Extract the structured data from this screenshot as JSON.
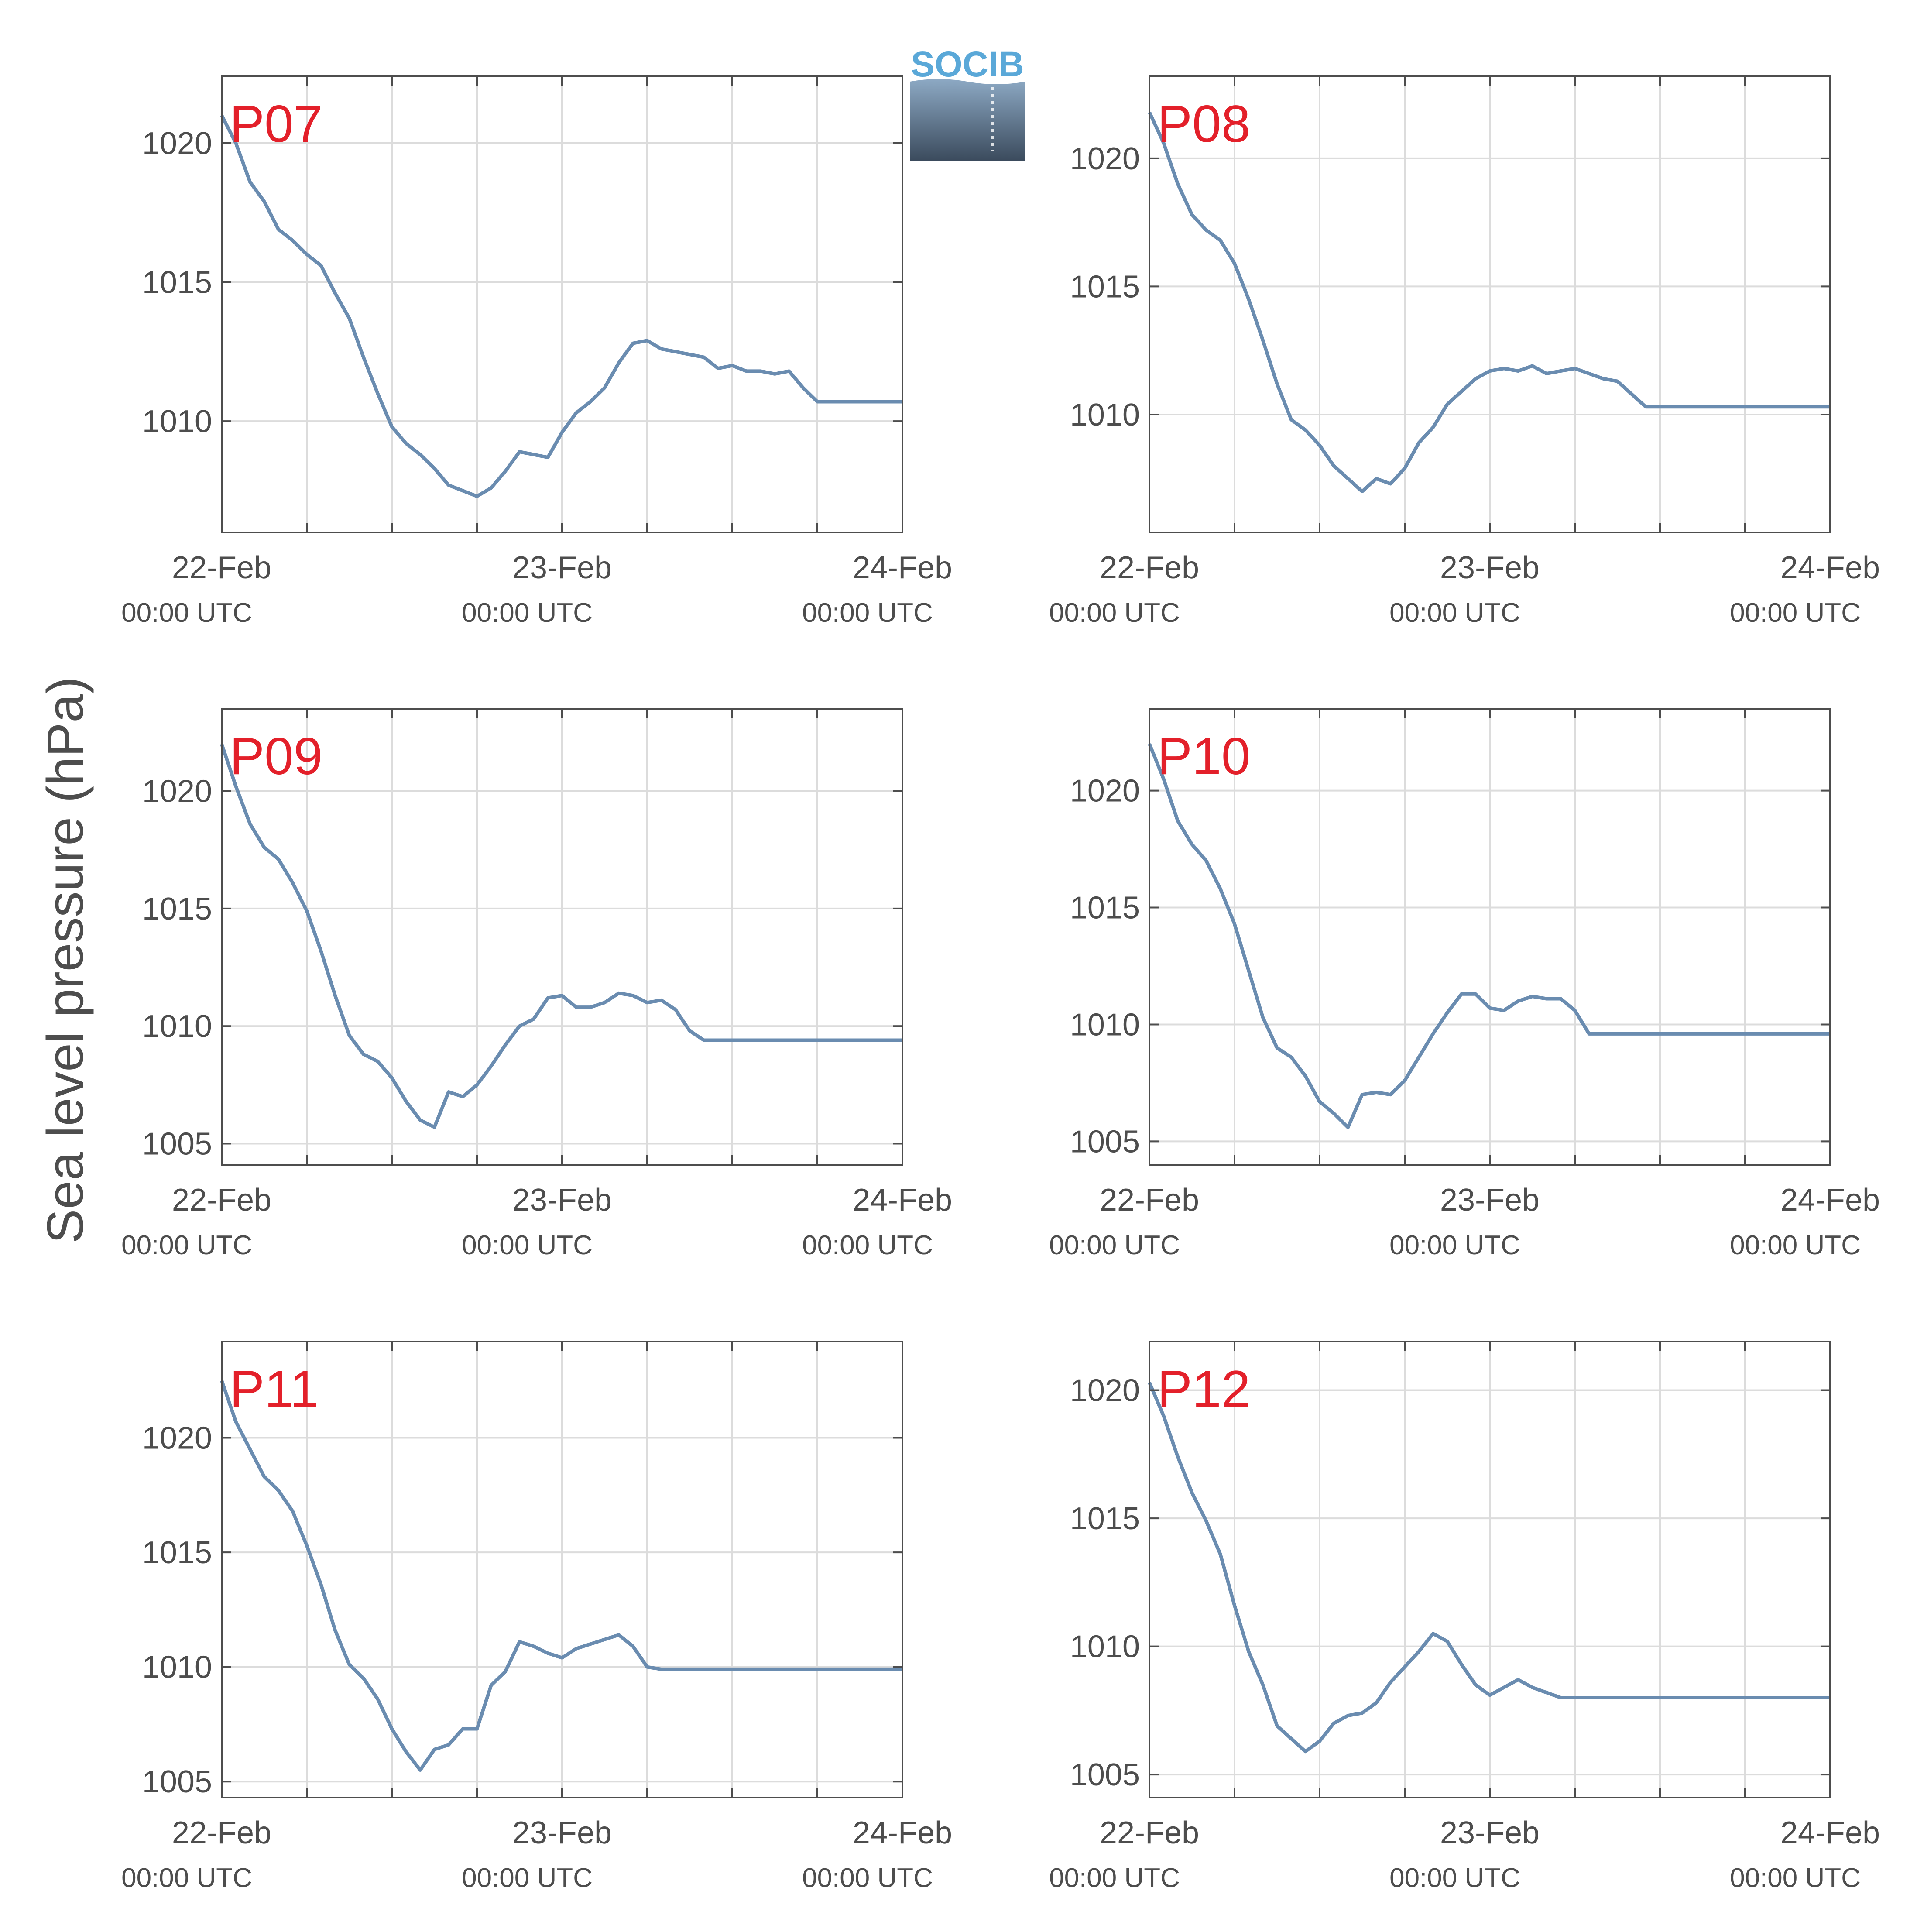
{
  "figure": {
    "ylabel": "Sea level pressure (hPa)",
    "logo_text": "SOCIB",
    "colors": {
      "line": "#6a8cb0",
      "panel_label": "#e3202a",
      "axis": "#4d4d4d",
      "grid": "#dcdcdc"
    }
  },
  "chart_data": [
    {
      "type": "line",
      "label": "P07",
      "x_ticks": [
        {
          "date": "22-Feb",
          "time": "00:00 UTC"
        },
        {
          "date": "23-Feb",
          "time": "00:00 UTC"
        },
        {
          "date": "24-Feb",
          "time": "00:00 UTC"
        }
      ],
      "xlim_hours": [
        0,
        48
      ],
      "grid": true,
      "ylim": [
        1006,
        1022.4
      ],
      "yticks": [
        1010,
        1015,
        1020
      ],
      "series": [
        {
          "x": [
            0,
            1,
            2,
            3,
            4,
            5,
            6,
            7,
            8,
            9,
            10,
            11,
            12,
            13,
            14,
            15,
            16,
            17,
            18,
            19,
            20,
            21,
            22,
            23,
            24,
            25,
            26,
            27,
            28,
            29,
            30,
            31,
            32,
            33,
            34,
            35,
            36,
            37,
            38,
            39,
            40,
            41,
            42,
            43,
            44,
            45,
            46,
            47,
            48
          ],
          "y": [
            1021.0,
            1020.0,
            1018.6,
            1017.9,
            1016.9,
            1016.5,
            1016.0,
            1015.6,
            1014.6,
            1013.7,
            1012.3,
            1011.0,
            1009.8,
            1009.2,
            1008.8,
            1008.3,
            1007.7,
            1007.5,
            1007.3,
            1007.6,
            1008.2,
            1008.9,
            1008.8,
            1008.7,
            1009.6,
            1010.3,
            1010.7,
            1011.2,
            1012.1,
            1012.8,
            1012.9,
            1012.6,
            1012.5,
            1012.4,
            1012.3,
            1011.9,
            1012.0,
            1011.8,
            1011.8,
            1011.7,
            1011.8,
            1011.2,
            1010.7,
            1010.7,
            1010.7,
            1010.7,
            1010.7,
            1010.7,
            1010.7
          ]
        }
      ]
    },
    {
      "type": "line",
      "label": "P08",
      "x_ticks": [
        {
          "date": "22-Feb",
          "time": "00:00 UTC"
        },
        {
          "date": "23-Feb",
          "time": "00:00 UTC"
        },
        {
          "date": "24-Feb",
          "time": "00:00 UTC"
        }
      ],
      "xlim_hours": [
        0,
        48
      ],
      "grid": true,
      "ylim": [
        1005.4,
        1023.2
      ],
      "yticks": [
        1010,
        1015,
        1020
      ],
      "series": [
        {
          "x": [
            0,
            1,
            2,
            3,
            4,
            5,
            6,
            7,
            8,
            9,
            10,
            11,
            12,
            13,
            14,
            15,
            16,
            17,
            18,
            19,
            20,
            21,
            22,
            23,
            24,
            25,
            26,
            27,
            28,
            29,
            30,
            31,
            32,
            33,
            34,
            35,
            36,
            37,
            38,
            39,
            40,
            41,
            42,
            43,
            44,
            45,
            46,
            47,
            48
          ],
          "y": [
            1021.8,
            1020.6,
            1019.0,
            1017.8,
            1017.2,
            1016.8,
            1015.9,
            1014.5,
            1012.9,
            1011.2,
            1009.8,
            1009.4,
            1008.8,
            1008.0,
            1007.5,
            1007.0,
            1007.5,
            1007.3,
            1007.9,
            1008.9,
            1009.5,
            1010.4,
            1010.9,
            1011.4,
            1011.7,
            1011.8,
            1011.7,
            1011.9,
            1011.6,
            1011.7,
            1011.8,
            1011.6,
            1011.4,
            1011.3,
            1010.8,
            1010.3,
            1010.3,
            1010.3,
            1010.3,
            1010.3,
            1010.3,
            1010.3,
            1010.3,
            1010.3,
            1010.3,
            1010.3,
            1010.3,
            1010.3,
            1010.3
          ]
        }
      ]
    },
    {
      "type": "line",
      "label": "P09",
      "x_ticks": [
        {
          "date": "22-Feb",
          "time": "00:00 UTC"
        },
        {
          "date": "23-Feb",
          "time": "00:00 UTC"
        },
        {
          "date": "24-Feb",
          "time": "00:00 UTC"
        }
      ],
      "xlim_hours": [
        0,
        48
      ],
      "grid": true,
      "ylim": [
        1004.1,
        1023.5
      ],
      "yticks": [
        1005,
        1010,
        1015,
        1020
      ],
      "series": [
        {
          "x": [
            0,
            1,
            2,
            3,
            4,
            5,
            6,
            7,
            8,
            9,
            10,
            11,
            12,
            13,
            14,
            15,
            16,
            17,
            18,
            19,
            20,
            21,
            22,
            23,
            24,
            25,
            26,
            27,
            28,
            29,
            30,
            31,
            32,
            33,
            34,
            35,
            36,
            37,
            38,
            39,
            40,
            41,
            42,
            43,
            44,
            45,
            46,
            47,
            48
          ],
          "y": [
            1022.0,
            1020.2,
            1018.6,
            1017.6,
            1017.1,
            1016.1,
            1014.9,
            1013.2,
            1011.3,
            1009.6,
            1008.8,
            1008.5,
            1007.8,
            1006.8,
            1006.0,
            1005.7,
            1007.2,
            1007.0,
            1007.5,
            1008.3,
            1009.2,
            1010.0,
            1010.3,
            1011.2,
            1011.3,
            1010.8,
            1010.8,
            1011.0,
            1011.4,
            1011.3,
            1011.0,
            1011.1,
            1010.7,
            1009.8,
            1009.4,
            1009.4,
            1009.4,
            1009.4,
            1009.4,
            1009.4,
            1009.4,
            1009.4,
            1009.4,
            1009.4,
            1009.4,
            1009.4,
            1009.4,
            1009.4,
            1009.4
          ]
        }
      ]
    },
    {
      "type": "line",
      "label": "P10",
      "x_ticks": [
        {
          "date": "22-Feb",
          "time": "00:00 UTC"
        },
        {
          "date": "23-Feb",
          "time": "00:00 UTC"
        },
        {
          "date": "24-Feb",
          "time": "00:00 UTC"
        }
      ],
      "xlim_hours": [
        0,
        48
      ],
      "grid": true,
      "ylim": [
        1004.0,
        1023.5
      ],
      "yticks": [
        1005,
        1010,
        1015,
        1020
      ],
      "series": [
        {
          "x": [
            0,
            1,
            2,
            3,
            4,
            5,
            6,
            7,
            8,
            9,
            10,
            11,
            12,
            13,
            14,
            15,
            16,
            17,
            18,
            19,
            20,
            21,
            22,
            23,
            24,
            25,
            26,
            27,
            28,
            29,
            30,
            31,
            32,
            33,
            34,
            35,
            36,
            37,
            38,
            39,
            40,
            41,
            42,
            43,
            44,
            45,
            46,
            47,
            48
          ],
          "y": [
            1022.0,
            1020.5,
            1018.7,
            1017.7,
            1017.0,
            1015.8,
            1014.3,
            1012.3,
            1010.3,
            1009.0,
            1008.6,
            1007.8,
            1006.7,
            1006.2,
            1005.6,
            1007.0,
            1007.1,
            1007.0,
            1007.6,
            1008.6,
            1009.6,
            1010.5,
            1011.3,
            1011.3,
            1010.7,
            1010.6,
            1011.0,
            1011.2,
            1011.1,
            1011.1,
            1010.6,
            1009.6,
            1009.6,
            1009.6,
            1009.6,
            1009.6,
            1009.6,
            1009.6,
            1009.6,
            1009.6,
            1009.6,
            1009.6,
            1009.6,
            1009.6,
            1009.6,
            1009.6,
            1009.6,
            1009.6,
            1009.6
          ]
        }
      ]
    },
    {
      "type": "line",
      "label": "P11",
      "x_ticks": [
        {
          "date": "22-Feb",
          "time": "00:00 UTC"
        },
        {
          "date": "23-Feb",
          "time": "00:00 UTC"
        },
        {
          "date": "24-Feb",
          "time": "00:00 UTC"
        }
      ],
      "xlim_hours": [
        0,
        48
      ],
      "grid": true,
      "ylim": [
        1004.3,
        1024.2
      ],
      "yticks": [
        1005,
        1010,
        1015,
        1020
      ],
      "series": [
        {
          "x": [
            0,
            1,
            2,
            3,
            4,
            5,
            6,
            7,
            8,
            9,
            10,
            11,
            12,
            13,
            14,
            15,
            16,
            17,
            18,
            19,
            20,
            21,
            22,
            23,
            24,
            25,
            26,
            27,
            28,
            29,
            30,
            31,
            32,
            33,
            34,
            35,
            36,
            37,
            38,
            39,
            40,
            41,
            42,
            43,
            44,
            45,
            46,
            47,
            48
          ],
          "y": [
            1022.5,
            1020.7,
            1019.5,
            1018.3,
            1017.7,
            1016.8,
            1015.3,
            1013.6,
            1011.6,
            1010.1,
            1009.5,
            1008.6,
            1007.3,
            1006.3,
            1005.5,
            1006.4,
            1006.6,
            1007.3,
            1007.3,
            1009.2,
            1009.8,
            1011.1,
            1010.9,
            1010.6,
            1010.4,
            1010.8,
            1011.0,
            1011.2,
            1011.4,
            1010.9,
            1010.0,
            1009.9,
            1009.9,
            1009.9,
            1009.9,
            1009.9,
            1009.9,
            1009.9,
            1009.9,
            1009.9,
            1009.9,
            1009.9,
            1009.9,
            1009.9,
            1009.9,
            1009.9,
            1009.9,
            1009.9,
            1009.9
          ]
        }
      ]
    },
    {
      "type": "line",
      "label": "P12",
      "x_ticks": [
        {
          "date": "22-Feb",
          "time": "00:00 UTC"
        },
        {
          "date": "23-Feb",
          "time": "00:00 UTC"
        },
        {
          "date": "24-Feb",
          "time": "00:00 UTC"
        }
      ],
      "xlim_hours": [
        0,
        48
      ],
      "grid": true,
      "ylim": [
        1004.1,
        1021.9
      ],
      "yticks": [
        1005,
        1010,
        1015,
        1020
      ],
      "series": [
        {
          "x": [
            0,
            1,
            2,
            3,
            4,
            5,
            6,
            7,
            8,
            9,
            10,
            11,
            12,
            13,
            14,
            15,
            16,
            17,
            18,
            19,
            20,
            21,
            22,
            23,
            24,
            25,
            26,
            27,
            28,
            29,
            30,
            31,
            32,
            33,
            34,
            35,
            36,
            37,
            38,
            39,
            40,
            41,
            42,
            43,
            44,
            45,
            46,
            47,
            48
          ],
          "y": [
            1020.3,
            1019.0,
            1017.4,
            1016.0,
            1014.9,
            1013.6,
            1011.6,
            1009.8,
            1008.5,
            1006.9,
            1006.4,
            1005.9,
            1006.3,
            1007.0,
            1007.3,
            1007.4,
            1007.8,
            1008.6,
            1009.2,
            1009.8,
            1010.5,
            1010.2,
            1009.3,
            1008.5,
            1008.1,
            1008.4,
            1008.7,
            1008.4,
            1008.2,
            1008.0,
            1008.0,
            1008.0,
            1008.0,
            1008.0,
            1008.0,
            1008.0,
            1008.0,
            1008.0,
            1008.0,
            1008.0,
            1008.0,
            1008.0,
            1008.0,
            1008.0,
            1008.0,
            1008.0,
            1008.0,
            1008.0,
            1008.0
          ]
        }
      ]
    }
  ]
}
